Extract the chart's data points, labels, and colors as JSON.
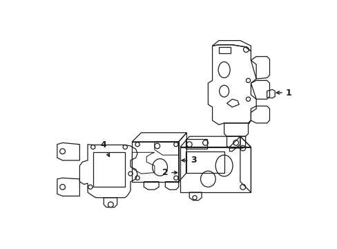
{
  "background_color": "#ffffff",
  "line_color": "#1a1a1a",
  "line_width": 0.9,
  "figure_width": 4.89,
  "figure_height": 3.6,
  "dpi": 100
}
